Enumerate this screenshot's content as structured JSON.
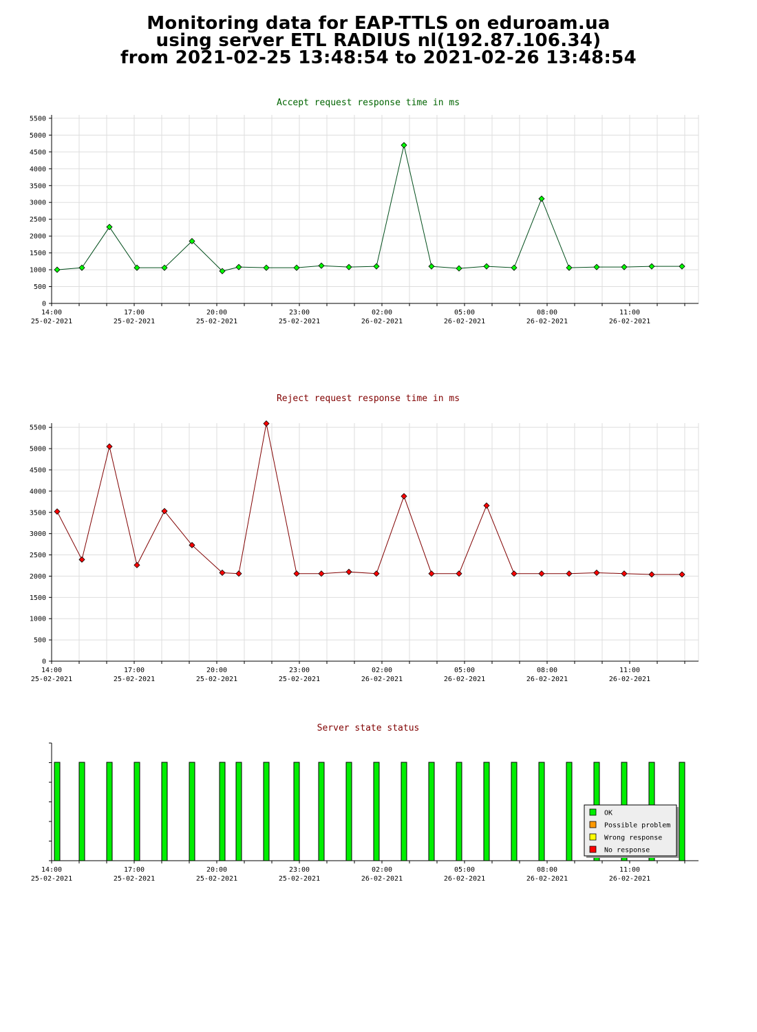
{
  "header": {
    "line1": "Monitoring data for EAP-TTLS on eduroam.ua",
    "line2": "using server ETL RADIUS nl(192.87.106.34)",
    "line3": "from 2021-02-25 13:48:54 to 2021-02-26 13:48:54"
  },
  "x_ticks": [
    {
      "hour": 0,
      "time": "14:00",
      "date": "25-02-2021"
    },
    {
      "hour": 3,
      "time": "17:00",
      "date": "25-02-2021"
    },
    {
      "hour": 6,
      "time": "20:00",
      "date": "25-02-2021"
    },
    {
      "hour": 9,
      "time": "23:00",
      "date": "25-02-2021"
    },
    {
      "hour": 12,
      "time": "02:00",
      "date": "26-02-2021"
    },
    {
      "hour": 15,
      "time": "05:00",
      "date": "26-02-2021"
    },
    {
      "hour": 18,
      "time": "08:00",
      "date": "26-02-2021"
    },
    {
      "hour": 21,
      "time": "11:00",
      "date": "26-02-2021"
    }
  ],
  "chart_data": [
    {
      "id": "accept",
      "type": "line",
      "title": "Accept request response time in ms",
      "title_color": "#006400",
      "line_color": "#004d1a",
      "marker_color": "#00ff00",
      "x_unit": "hours after 14:00 25-02-2021",
      "ylim": [
        0,
        5600
      ],
      "yticks": [
        0,
        500,
        1000,
        1500,
        2000,
        2500,
        3000,
        3500,
        4000,
        4500,
        5000,
        5500
      ],
      "grid": true,
      "x": [
        0.2,
        1.1,
        2.1,
        3.1,
        4.1,
        5.1,
        6.2,
        6.8,
        7.8,
        8.9,
        9.8,
        10.8,
        11.8,
        12.8,
        13.8,
        14.8,
        15.8,
        16.8,
        17.8,
        18.8,
        19.8,
        20.8,
        21.8,
        22.9
      ],
      "y": [
        1000,
        1060,
        2270,
        1060,
        1060,
        1850,
        960,
        1080,
        1060,
        1060,
        1120,
        1080,
        1100,
        4700,
        1100,
        1040,
        1100,
        1060,
        3110,
        1060,
        1080,
        1080,
        1100,
        1100
      ]
    },
    {
      "id": "reject",
      "type": "line",
      "title": "Reject request response time in ms",
      "title_color": "#800000",
      "line_color": "#800000",
      "marker_color": "#ff0000",
      "x_unit": "hours after 14:00 25-02-2021",
      "ylim": [
        0,
        5600
      ],
      "yticks": [
        0,
        500,
        1000,
        1500,
        2000,
        2500,
        3000,
        3500,
        4000,
        4500,
        5000,
        5500
      ],
      "grid": true,
      "x": [
        0.2,
        1.1,
        2.1,
        3.1,
        4.1,
        5.1,
        6.2,
        6.8,
        7.8,
        8.9,
        9.8,
        10.8,
        11.8,
        12.8,
        13.8,
        14.8,
        15.8,
        16.8,
        17.8,
        18.8,
        19.8,
        20.8,
        21.8,
        22.9
      ],
      "y": [
        3520,
        2390,
        5050,
        2260,
        3530,
        2730,
        2080,
        2060,
        5590,
        2060,
        2060,
        2100,
        2060,
        3880,
        2060,
        2060,
        3660,
        2060,
        2060,
        2060,
        2080,
        2060,
        2040,
        2040
      ]
    },
    {
      "id": "status",
      "type": "bar",
      "title": "Server state status",
      "title_color": "#800000",
      "x_unit": "hours after 14:00 25-02-2021",
      "x": [
        0.2,
        1.1,
        2.1,
        3.1,
        4.1,
        5.1,
        6.2,
        6.8,
        7.8,
        8.9,
        9.8,
        10.8,
        11.8,
        12.8,
        13.8,
        14.8,
        15.8,
        16.8,
        17.8,
        18.8,
        19.8,
        20.8,
        21.8,
        22.9
      ],
      "states": [
        "OK",
        "OK",
        "OK",
        "OK",
        "OK",
        "OK",
        "OK",
        "OK",
        "OK",
        "OK",
        "OK",
        "OK",
        "OK",
        "OK",
        "OK",
        "OK",
        "OK",
        "OK",
        "OK",
        "OK",
        "OK",
        "OK",
        "OK",
        "OK"
      ],
      "legend_position": "bottom-right",
      "legend": [
        {
          "state": "OK",
          "label": "OK",
          "color": "#00ee00"
        },
        {
          "state": "Possible problem",
          "label": "Possible problem",
          "color": "#ff9900"
        },
        {
          "state": "Wrong response",
          "label": "Wrong response",
          "color": "#ffff00"
        },
        {
          "state": "No response",
          "label": "No response",
          "color": "#ff0000"
        }
      ]
    }
  ]
}
